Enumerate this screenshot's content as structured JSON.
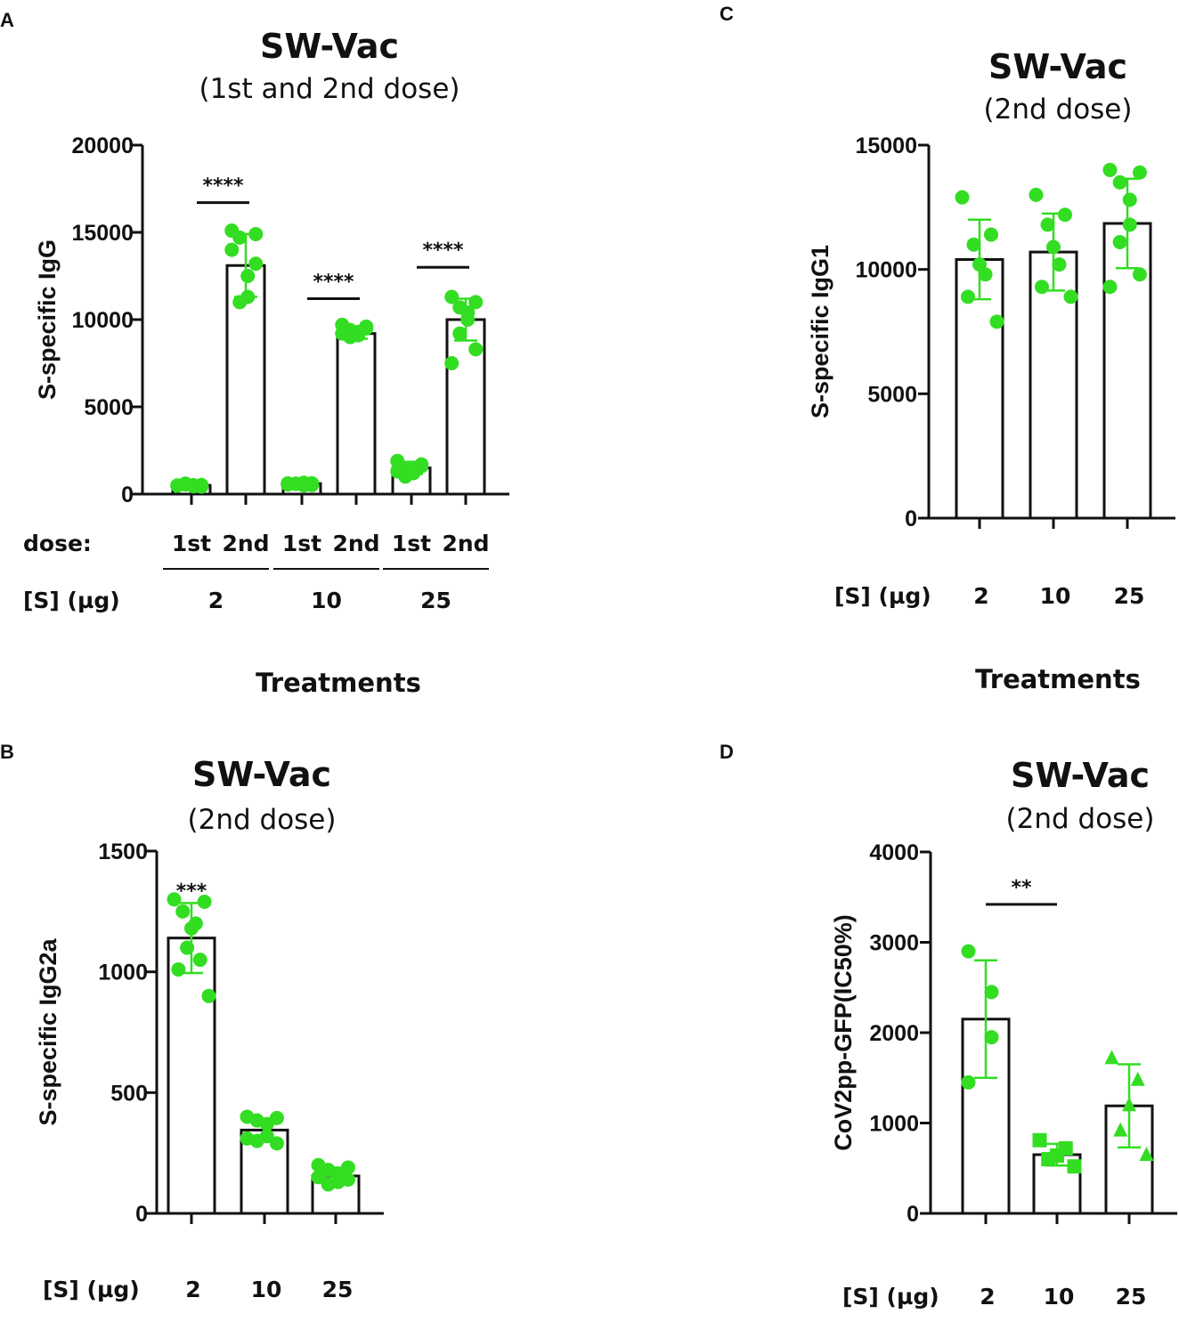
{
  "colors": {
    "points": "#33dd22",
    "bar_fill": "#ffffff",
    "axis": "#111111"
  },
  "chart_data": [
    {
      "panel": "A",
      "type": "bar",
      "title": "SW-Vac",
      "subtitle": "(1st and 2nd dose)",
      "ylabel": "S-specific IgG",
      "xlabel": "Treatments",
      "ylim": [
        0,
        20000
      ],
      "yticks": [
        0,
        5000,
        10000,
        15000,
        20000
      ],
      "dose_label": "dose:",
      "dose_ticks": [
        "1st",
        "2nd",
        "1st",
        "2nd",
        "1st",
        "2nd"
      ],
      "group_label": "[S] (µg)",
      "groups": [
        "2",
        "10",
        "25"
      ],
      "bars": [
        {
          "mean": 500,
          "sd": 80,
          "points": [
            480,
            520,
            550,
            450,
            510,
            600,
            430,
            500
          ],
          "marker": "circle"
        },
        {
          "mean": 13100,
          "sd": 1800,
          "points": [
            15100,
            14900,
            14700,
            12500,
            11300,
            11000,
            13200,
            14000
          ],
          "marker": "circle"
        },
        {
          "mean": 600,
          "sd": 80,
          "points": [
            550,
            620,
            600,
            500,
            650,
            580,
            520,
            610
          ],
          "marker": "circle"
        },
        {
          "mean": 9200,
          "sd": 300,
          "points": [
            9700,
            9600,
            9400,
            9300,
            9100,
            9000,
            9500,
            9200
          ],
          "marker": "circle"
        },
        {
          "mean": 1500,
          "sd": 350,
          "points": [
            1900,
            1700,
            1400,
            1200,
            1500,
            1000,
            1600,
            1300
          ],
          "marker": "circle"
        },
        {
          "mean": 10000,
          "sd": 1200,
          "points": [
            11300,
            11000,
            10700,
            10400,
            10000,
            9200,
            8300,
            7500
          ],
          "marker": "circle"
        }
      ],
      "significance": [
        {
          "label": "****",
          "from": 0,
          "to": 1,
          "y": 16700
        },
        {
          "label": "****",
          "from": 2,
          "to": 3,
          "y": 11200
        },
        {
          "label": "****",
          "from": 4,
          "to": 5,
          "y": 13000
        }
      ]
    },
    {
      "panel": "B",
      "type": "bar",
      "title": "SW-Vac",
      "subtitle": "(2nd dose)",
      "ylabel": "S-specific IgG2a",
      "ylim": [
        0,
        1500
      ],
      "yticks": [
        0,
        500,
        1000,
        1500
      ],
      "group_label": "[S] (µg)",
      "categories": [
        "2",
        "10",
        "25"
      ],
      "bars": [
        {
          "mean": 1140,
          "sd": 145,
          "points": [
            1300,
            1290,
            1250,
            1200,
            1180,
            1100,
            1050,
            1010,
            900
          ],
          "marker": "circle"
        },
        {
          "mean": 345,
          "sd": 45,
          "points": [
            400,
            395,
            385,
            370,
            320,
            300,
            290,
            310
          ],
          "marker": "circle"
        },
        {
          "mean": 155,
          "sd": 35,
          "points": [
            200,
            190,
            180,
            160,
            130,
            120,
            140,
            150
          ],
          "marker": "circle"
        }
      ],
      "significance": [
        {
          "label": "***",
          "on": 0,
          "y": 1330
        }
      ]
    },
    {
      "panel": "C",
      "type": "bar",
      "title": "SW-Vac",
      "subtitle": "(2nd dose)",
      "ylabel": "S-specific IgG1",
      "xlabel": "Treatments",
      "ylim": [
        0,
        15000
      ],
      "yticks": [
        0,
        5000,
        10000,
        15000
      ],
      "group_label": "[S] (µg)",
      "categories": [
        "2",
        "10",
        "25"
      ],
      "bars": [
        {
          "mean": 10400,
          "sd": 1600,
          "points": [
            12900,
            11400,
            11000,
            10200,
            9800,
            8900,
            7900
          ],
          "marker": "circle"
        },
        {
          "mean": 10700,
          "sd": 1550,
          "points": [
            13000,
            12200,
            11800,
            10900,
            10200,
            9300,
            8900
          ],
          "marker": "circle"
        },
        {
          "mean": 11850,
          "sd": 1800,
          "points": [
            14000,
            13900,
            13500,
            12800,
            11800,
            11100,
            9800,
            9300
          ],
          "marker": "circle"
        }
      ],
      "significance": []
    },
    {
      "panel": "D",
      "type": "bar",
      "title": "SW-Vac",
      "subtitle": "(2nd dose)",
      "ylabel": "CoV2pp-GFP(IC50%)",
      "ylim": [
        0,
        4000
      ],
      "yticks": [
        0,
        1000,
        2000,
        3000,
        4000
      ],
      "group_label": "[S] (µg)",
      "categories": [
        "2",
        "10",
        "25"
      ],
      "bars": [
        {
          "mean": 2150,
          "sd": 650,
          "points": [
            2900,
            2450,
            1950,
            1450
          ],
          "marker": "circle"
        },
        {
          "mean": 650,
          "sd": 120,
          "points": [
            810,
            720,
            640,
            600,
            520
          ],
          "marker": "square"
        },
        {
          "mean": 1190,
          "sd": 460,
          "points": [
            1720,
            1480,
            1200,
            920,
            650
          ],
          "marker": "triangle"
        }
      ],
      "significance": [
        {
          "label": "**",
          "from": 0,
          "to": 1,
          "y": 3420
        }
      ]
    }
  ]
}
